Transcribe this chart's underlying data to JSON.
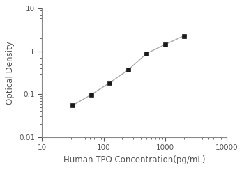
{
  "x_data": [
    31.25,
    62.5,
    125,
    250,
    500,
    1000,
    2000
  ],
  "y_data": [
    0.055,
    0.097,
    0.185,
    0.37,
    0.9,
    1.45,
    2.3
  ],
  "x_label": "Human TPO Concentration(pg/mL)",
  "y_label": "Optical Density",
  "x_lim": [
    10,
    10000
  ],
  "y_lim": [
    0.01,
    10
  ],
  "line_color": "#aaaaaa",
  "marker_color": "#1a1a1a",
  "marker_style": "s",
  "marker_size": 4.5,
  "line_width": 1.0,
  "background_color": "#ffffff",
  "axes_color": "#555555",
  "spine_color": "#888888",
  "tick_fontsize": 7.5,
  "label_fontsize": 8.5
}
